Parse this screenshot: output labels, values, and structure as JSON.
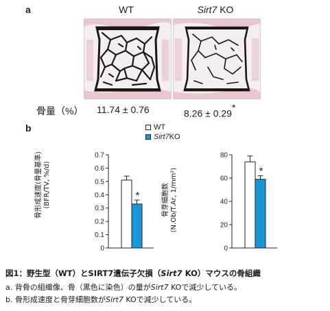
{
  "panel_a": {
    "letter": "a",
    "wt_label": "WT",
    "ko_gene": "Sirt7",
    "ko_suffix": " KO",
    "bone_volume_label": "骨量（%）",
    "wt_value": "11.74 ± 0.76",
    "ko_value": "8.26 ± 0.29",
    "ko_star": "*",
    "colors": {
      "stain": "#1b1613",
      "background": "#f5eef1",
      "tissue": "#e9c7d2"
    }
  },
  "panel_b": {
    "letter": "b",
    "legend": {
      "wt": "WT",
      "ko_gene": "Sirt7",
      "ko_suffix": " KO",
      "colors": {
        "wt": "#ffffff",
        "ko": "#1a97d9"
      }
    }
  },
  "chart_data": [
    {
      "type": "bar",
      "ylabel_line1": "骨形成速度(骨量基準)",
      "ylabel_line2": "(BFR/TV, %/d)",
      "ylim": [
        0,
        0.7
      ],
      "yticks": [
        "0",
        "0.1",
        "0.2",
        "0.3",
        "0.4",
        "0.5",
        "0.6",
        "0.7"
      ],
      "series": [
        {
          "values": [
            0.51
          ],
          "error": 0.03,
          "color": "#ffffff"
        },
        {
          "values": [
            0.33
          ],
          "error": 0.03,
          "color": "#1a97d9",
          "marker": "*"
        }
      ]
    },
    {
      "type": "bar",
      "ylabel_line1": "骨芽細胞数",
      "ylabel_line2": "(N.Ob/T.Ar, 1/mm²)",
      "ylim": [
        0,
        80
      ],
      "yticks": [
        "0",
        "20",
        "40",
        "60",
        "80"
      ],
      "series": [
        {
          "values": [
            74
          ],
          "error": 5,
          "color": "#ffffff"
        },
        {
          "values": [
            59
          ],
          "error": 3,
          "color": "#1a97d9",
          "marker": "*"
        }
      ]
    }
  ],
  "caption": {
    "title_prefix": "図1：野生型（WT）とSIRT7遺伝子欠損（",
    "title_gene": "Sirt7",
    "title_suffix": " KO）マウスの骨組織",
    "line_a_prefix": "a. 背骨の組織像、骨（黒色に染色）の量が",
    "line_a_gene": "Sirt7",
    "line_a_suffix": " KOで減少している。",
    "line_b_prefix": "b. 骨形成速度と骨芽細胞数が",
    "line_b_gene": "Sirt7",
    "line_b_suffix": " KOで減少している。"
  }
}
